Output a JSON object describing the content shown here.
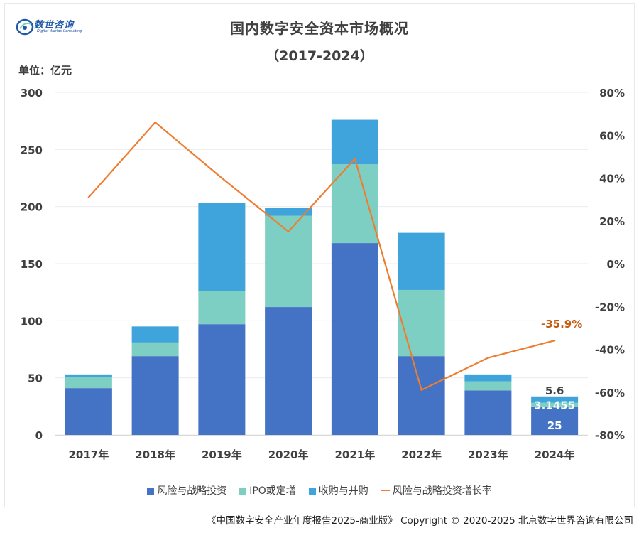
{
  "logo": {
    "text": "数世咨询",
    "sub": "Digital Worlds Consulting"
  },
  "title": "国内数字安全资本市场概况",
  "subtitle": "（2017-2024）",
  "unit_label": "单位：亿元",
  "colors": {
    "venture": "#4472c4",
    "ipo": "#7ecfc3",
    "ma": "#3fa3dc",
    "growth": "#ed7d31",
    "growth_label": "#c55a11",
    "text": "#404040",
    "grid": "#ebebeb"
  },
  "chart_data": {
    "type": "bar",
    "stacked": true,
    "categories": [
      "2017年",
      "2018年",
      "2019年",
      "2020年",
      "2021年",
      "2022年",
      "2023年",
      "2024年"
    ],
    "series": [
      {
        "name": "风险与战略投资",
        "axis": "left",
        "values": [
          41,
          69,
          97,
          112,
          168,
          69,
          39,
          25
        ]
      },
      {
        "name": "IPO或定增",
        "axis": "left",
        "values": [
          10,
          12,
          29,
          80,
          69,
          58,
          8,
          3.1455
        ]
      },
      {
        "name": "收购与并购",
        "axis": "left",
        "values": [
          2,
          14,
          77,
          7,
          39,
          50,
          6,
          5.6
        ]
      },
      {
        "name": "风险与战略投资增长率",
        "type": "line",
        "axis": "right",
        "values": [
          31,
          66,
          40,
          15,
          49,
          -59,
          -44,
          -35.9
        ]
      }
    ],
    "data_labels": [
      {
        "category": "2024年",
        "series": "风险与战略投资",
        "text": "25"
      },
      {
        "category": "2024年",
        "series": "IPO或定增",
        "text": "3.1455"
      },
      {
        "category": "2024年",
        "series": "收购与并购",
        "text": "5.6"
      },
      {
        "category": "2024年",
        "series": "风险与战略投资增长率",
        "text": "-35.9%"
      }
    ],
    "ylim": [
      0,
      300
    ],
    "yticks": [
      "0",
      "50",
      "100",
      "150",
      "200",
      "250",
      "300"
    ],
    "y2lim": [
      -80,
      80
    ],
    "y2ticks": [
      "-80%",
      "-60%",
      "-40%",
      "-20%",
      "0%",
      "20%",
      "40%",
      "60%",
      "80%"
    ],
    "grid": true,
    "legend_position": "bottom"
  },
  "footer": "《中国数字安全产业年度报告2025-商业版》 Copyright © 2020-2025 北京数字世界咨询有限公司"
}
